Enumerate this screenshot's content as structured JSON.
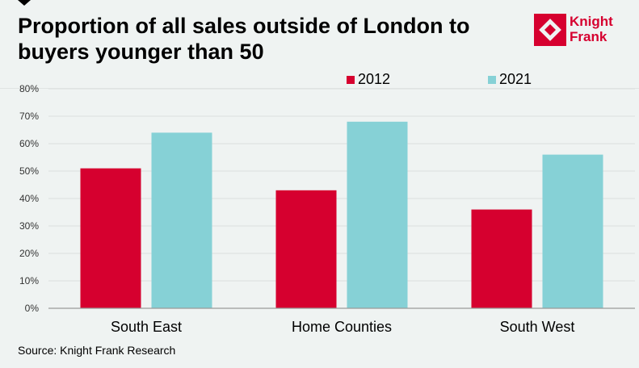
{
  "header": {
    "title_line1": "Proportion of all sales outside of London to",
    "title_line2": "buyers younger than 50",
    "marker_icon": "down-triangle-icon"
  },
  "logo": {
    "line1": "Knight",
    "line2": "Frank",
    "icon": "knight-frank-logo-icon",
    "color": "#d6002f"
  },
  "source": "Source: Knight Frank Research",
  "colors": {
    "series_2012": "#d6002f",
    "series_2021": "#86d1d6",
    "grid": "#dfe3e2",
    "axis": "#9a9a9a",
    "background": "#eff3f2"
  },
  "chart_data": {
    "type": "bar",
    "title": "Proportion of all sales outside of London to buyers younger than 50",
    "xlabel": "",
    "ylabel": "",
    "categories": [
      "South East",
      "Home Counties",
      "South West"
    ],
    "series": [
      {
        "name": "2012",
        "values": [
          51,
          43,
          36
        ],
        "color": "#d6002f"
      },
      {
        "name": "2021",
        "values": [
          64,
          68,
          56
        ],
        "color": "#86d1d6"
      }
    ],
    "ylim": [
      0,
      80
    ],
    "yticks": [
      0,
      10,
      20,
      30,
      40,
      50,
      60,
      70,
      80
    ],
    "ytick_labels": [
      "0%",
      "10%",
      "20%",
      "30%",
      "40%",
      "50%",
      "60%",
      "70%",
      "80%"
    ],
    "grid": true,
    "legend_position": "top-right",
    "unit": "%"
  }
}
